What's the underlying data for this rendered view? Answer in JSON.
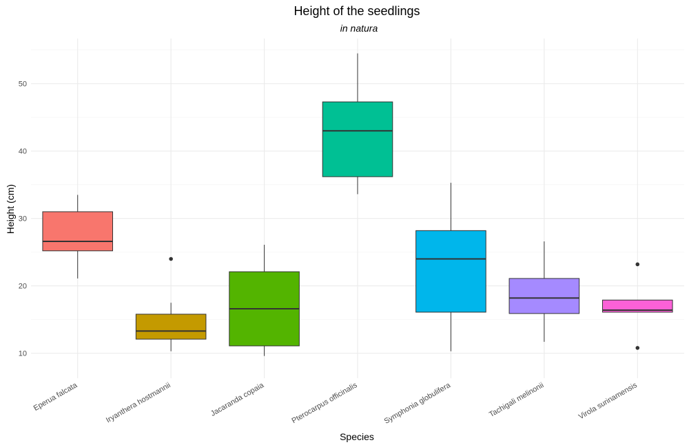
{
  "chart_data": {
    "type": "boxplot",
    "title": "Height of the seedlings",
    "subtitle": "in natura",
    "xlabel": "Species",
    "ylabel": "Height (cm)",
    "ylim": [
      6.3,
      56.7
    ],
    "yticks": [
      10,
      20,
      30,
      40,
      50
    ],
    "grid": true,
    "legend": "none",
    "categories": [
      "Eperua falcata",
      "Iryanthera hostmannii",
      "Jacaranda copaia",
      "Pterocarpus officinalis",
      "Symphonia globulifera",
      "Tachigali melinonii",
      "Virola surinamensis"
    ],
    "boxes": [
      {
        "lower_whisker": 21.1,
        "q1": 25.2,
        "median": 26.6,
        "q3": 31.0,
        "upper_whisker": 33.5,
        "outliers": [],
        "color": "#F8766D"
      },
      {
        "lower_whisker": 10.3,
        "q1": 12.1,
        "median": 13.3,
        "q3": 15.8,
        "upper_whisker": 17.5,
        "outliers": [
          24.0
        ],
        "color": "#C49A00"
      },
      {
        "lower_whisker": 9.6,
        "q1": 11.1,
        "median": 16.6,
        "q3": 22.1,
        "upper_whisker": 26.1,
        "outliers": [],
        "color": "#53B400"
      },
      {
        "lower_whisker": 33.6,
        "q1": 36.2,
        "median": 43.0,
        "q3": 47.3,
        "upper_whisker": 54.5,
        "outliers": [],
        "color": "#00C094"
      },
      {
        "lower_whisker": 10.3,
        "q1": 16.1,
        "median": 24.0,
        "q3": 28.2,
        "upper_whisker": 35.3,
        "outliers": [],
        "color": "#00B6EB"
      },
      {
        "lower_whisker": 11.7,
        "q1": 15.9,
        "median": 18.2,
        "q3": 21.1,
        "upper_whisker": 26.6,
        "outliers": [],
        "color": "#A58AFF"
      },
      {
        "lower_whisker": 16.1,
        "q1": 16.1,
        "median": 16.4,
        "q3": 17.9,
        "upper_whisker": 17.9,
        "outliers": [
          23.2,
          10.8
        ],
        "color": "#FB61D7"
      }
    ]
  }
}
